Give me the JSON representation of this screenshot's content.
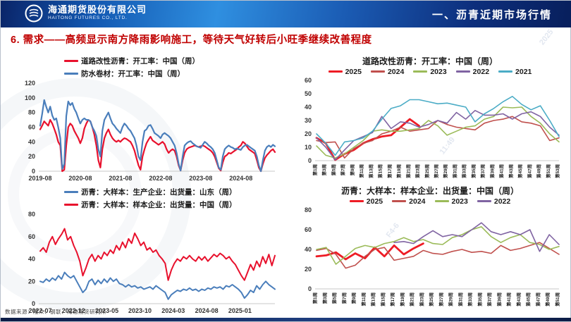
{
  "header": {
    "company_cn": "海通期货股份有限公司",
    "company_en": "HAITONG FUTURES CO., LTD.",
    "section_title": "一、沥青近期市场行情"
  },
  "slide_title": "6. 需求——高频显示南方降雨影响施工，等待天气好转后小旺季继续改善程度",
  "footer": {
    "source": "数据来源：隆众、钢联、海通期货研究所"
  },
  "watermarks": [
    "2025",
    "11:49",
    "F4-6"
  ],
  "colors": {
    "title_red": "#c00000",
    "series_red": "#e8112d",
    "series_steel_blue": "#4a7ebb",
    "series_2025": "#ee1c25",
    "series_2024": "#c0504d",
    "series_2023": "#9bbb59",
    "series_2022": "#8064a2",
    "series_2021": "#4bacc6",
    "header_blue": "#1257b0"
  },
  "chart_data": [
    {
      "type": "line",
      "title": "",
      "legend_layout": "column",
      "ylim": [
        0,
        120
      ],
      "yticks": [
        0,
        20,
        40,
        60,
        80,
        100,
        120
      ],
      "x_ticks": [
        "2019-08",
        "2020-08",
        "2021-08",
        "2022-08",
        "2023-08",
        "2024-08"
      ],
      "x_tick_pos": [
        0,
        0.171,
        0.342,
        0.513,
        0.684,
        0.855
      ],
      "x_labels_vertical": false,
      "margin_left": 30,
      "series": [
        {
          "name": "道路改性沥青：开工率：中国（周）",
          "color": "#e8112d",
          "width": 2.2,
          "values": [
            57,
            62,
            68,
            65,
            62,
            70,
            65,
            58,
            50,
            40,
            35,
            0,
            2,
            35,
            60,
            65,
            62,
            55,
            50,
            45,
            38,
            45,
            58,
            65,
            70,
            68,
            60,
            50,
            35,
            15,
            5,
            30,
            45,
            52,
            57,
            50,
            45,
            42,
            40,
            42,
            40,
            43,
            45,
            44,
            42,
            40,
            35,
            28,
            18,
            8,
            2,
            20,
            30,
            38,
            43,
            47,
            42,
            40,
            38,
            36,
            38,
            40,
            37,
            30,
            25,
            28,
            30,
            28,
            20,
            8,
            1,
            15,
            25,
            30,
            32,
            33,
            34,
            35,
            34,
            33,
            34,
            35,
            34,
            32,
            30,
            28,
            25,
            20,
            12,
            4,
            1,
            12,
            20,
            22,
            25,
            24,
            26,
            28,
            30,
            33,
            35,
            40,
            38,
            34,
            30,
            28,
            26,
            24,
            15,
            5,
            0,
            10,
            18,
            22,
            25,
            28,
            30,
            26
          ]
        },
        {
          "name": "防水卷材：开工率：中国（周）",
          "color": "#4a7ebb",
          "width": 2.2,
          "values": [
            62,
            78,
            97,
            88,
            80,
            88,
            76,
            70,
            72,
            60,
            45,
            3,
            10,
            75,
            95,
            90,
            93,
            85,
            80,
            72,
            65,
            70,
            72,
            70,
            70,
            68,
            60,
            55,
            48,
            30,
            20,
            55,
            70,
            75,
            80,
            72,
            65,
            62,
            58,
            55,
            52,
            60,
            65,
            62,
            58,
            55,
            50,
            45,
            35,
            20,
            15,
            40,
            55,
            57,
            62,
            63,
            58,
            52,
            50,
            48,
            45,
            50,
            52,
            50,
            48,
            45,
            40,
            35,
            25,
            10,
            1,
            20,
            35,
            38,
            40,
            41,
            38,
            36,
            34,
            33,
            32,
            36,
            40,
            38,
            35,
            33,
            30,
            25,
            15,
            5,
            2,
            20,
            30,
            33,
            35,
            33,
            32,
            30,
            31,
            30,
            29,
            33,
            35,
            36,
            34,
            32,
            30,
            28,
            20,
            8,
            0,
            15,
            28,
            33,
            35,
            33,
            36,
            34
          ]
        }
      ]
    },
    {
      "type": "line",
      "title": "道路改性沥青：开工率：中国（周）",
      "legend_layout": "row",
      "ylim": [
        0,
        60
      ],
      "yticks": [
        0,
        10,
        20,
        30,
        40,
        50,
        60
      ],
      "x_ticks": [
        "第1周",
        "第3周",
        "第5周",
        "第7周",
        "第9周",
        "第11周",
        "第13周",
        "第15周",
        "第17周",
        "第19周",
        "第21周",
        "第23周",
        "第25周",
        "第27周",
        "第29周",
        "第31周",
        "第33周",
        "第35周",
        "第37周",
        "第39周",
        "第41周",
        "第43周",
        "第45周",
        "第47周",
        "第49周",
        "第51周",
        "第53周"
      ],
      "x_labels_vertical": true,
      "margin_left": 26,
      "series": [
        {
          "name": "2025",
          "color": "#ee1c25",
          "width": 2.8,
          "values": [
            17,
            13,
            0.5,
            5,
            8,
            13,
            16,
            18,
            19,
            25,
            31,
            26
          ]
        },
        {
          "name": "2024",
          "color": "#c0504d",
          "width": 1.6,
          "values": [
            15,
            13.5,
            14,
            2,
            9,
            13,
            15,
            20,
            22,
            25,
            22,
            23,
            24,
            30,
            27,
            25,
            24,
            23,
            28,
            30,
            31,
            33,
            29,
            28,
            26,
            15,
            17
          ]
        },
        {
          "name": "2023",
          "color": "#9bbb59",
          "width": 1.6,
          "values": [
            11,
            4,
            2,
            5,
            10,
            15,
            22,
            23,
            22,
            22,
            23,
            24,
            30,
            26,
            19,
            22,
            25,
            26,
            31,
            33,
            40,
            39.5,
            40,
            33,
            28,
            20,
            14
          ]
        },
        {
          "name": "2022",
          "color": "#8064a2",
          "width": 1.6,
          "values": [
            17,
            10,
            0.5,
            8,
            15,
            18,
            21,
            33,
            24,
            29,
            28,
            25,
            27,
            30,
            28,
            36,
            31,
            37.5,
            34,
            34,
            35,
            31,
            35,
            36.5,
            33,
            25,
            19
          ]
        },
        {
          "name": "2021",
          "color": "#4bacc6",
          "width": 1.6,
          "values": [
            20,
            13,
            4,
            14,
            15,
            17,
            22,
            31,
            39,
            41,
            45.5,
            45.5,
            44,
            42.5,
            43,
            41.5,
            40,
            29,
            35,
            39,
            44,
            48,
            42,
            38,
            41,
            30,
            18
          ]
        }
      ]
    },
    {
      "type": "line",
      "title": "",
      "legend_layout": "column",
      "ylim": [
        0,
        80
      ],
      "yticks": [
        0,
        20,
        40,
        60,
        80
      ],
      "x_ticks": [
        "2022-07",
        "2022-12",
        "2023-05",
        "2023-10",
        "2024-03",
        "2024-08",
        "2025-01"
      ],
      "x_tick_pos": [
        0,
        0.142,
        0.284,
        0.425,
        0.567,
        0.709,
        0.851
      ],
      "x_labels_vertical": false,
      "margin_left": 30,
      "series": [
        {
          "name": "沥青：大样本：生产企业：出货量：山东（周）",
          "color": "#4a7ebb",
          "width": 2,
          "values": [
            20,
            19,
            22,
            20,
            23,
            21,
            25,
            22,
            28,
            25,
            23,
            25,
            20,
            15,
            10,
            13,
            20,
            22,
            17,
            21,
            18,
            22,
            19,
            23,
            20,
            22,
            18,
            17,
            15,
            17,
            15,
            16,
            14,
            15,
            13,
            14,
            15,
            13,
            16,
            14,
            12,
            10,
            4,
            8,
            10,
            12,
            11,
            13,
            12,
            14,
            12,
            13,
            11,
            13,
            12,
            14,
            13,
            15,
            14,
            15,
            13,
            16,
            15,
            17,
            15,
            13,
            10,
            5,
            8,
            12,
            10,
            16,
            13,
            17,
            20,
            17,
            15,
            13
          ]
        },
        {
          "name": "沥青：大样本：样本企业：出货量：中国（周）",
          "color": "#e8112d",
          "width": 2,
          "values": [
            47,
            50,
            46,
            55,
            60,
            53,
            58,
            62,
            67,
            57,
            60,
            52,
            46,
            38,
            25,
            32,
            40,
            44,
            38,
            43,
            40,
            46,
            43,
            48,
            45,
            52,
            48,
            55,
            50,
            58,
            54,
            63,
            58,
            52,
            55,
            48,
            50,
            46,
            48,
            43,
            40,
            36,
            21,
            30,
            36,
            40,
            38,
            42,
            40,
            43,
            40,
            38,
            42,
            39,
            42,
            38,
            41,
            44,
            42,
            45,
            43,
            40,
            42,
            38,
            35,
            30,
            25,
            21,
            28,
            35,
            30,
            38,
            33,
            42,
            36,
            44,
            34,
            43
          ]
        }
      ]
    },
    {
      "type": "line",
      "title": "沥青：大样本：样本企业：出货量：中国（周）",
      "legend_layout": "row",
      "ylim": [
        0,
        80
      ],
      "yticks": [
        0,
        20,
        40,
        60,
        80
      ],
      "x_ticks": [
        "第1周",
        "第3周",
        "第5周",
        "第7周",
        "第9周",
        "第11周",
        "第13周",
        "第15周",
        "第17周",
        "第19周",
        "第21周",
        "第23周",
        "第25周",
        "第27周",
        "第29周",
        "第31周",
        "第33周",
        "第35周",
        "第37周",
        "第39周",
        "第41周",
        "第43周",
        "第45周",
        "第47周",
        "第49周",
        "第51周"
      ],
      "x_labels_vertical": true,
      "margin_left": 26,
      "series": [
        {
          "name": "2025",
          "color": "#ee1c25",
          "width": 2.8,
          "values": [
            33,
            34,
            37,
            30,
            36,
            31,
            42,
            33,
            44,
            35,
            41,
            46
          ]
        },
        {
          "name": "2024",
          "color": "#c0504d",
          "width": 1.6,
          "values": [
            39,
            41,
            35,
            21,
            24,
            33,
            40,
            42,
            29,
            31,
            33,
            39,
            36,
            35,
            38,
            40,
            37,
            38,
            36,
            44,
            39,
            41,
            44,
            47,
            41,
            35
          ]
        },
        {
          "name": "2023",
          "color": "#9bbb59",
          "width": 1.6,
          "values": [
            40,
            42,
            25,
            33,
            41,
            44,
            42,
            46,
            48,
            52,
            48,
            50,
            46,
            45,
            52,
            55,
            60,
            63,
            53,
            47,
            52,
            55,
            47,
            45,
            40,
            43
          ]
        },
        {
          "name": "2022",
          "color": "#8064a2",
          "width": 1.6,
          "values": [
            null,
            null,
            null,
            null,
            null,
            null,
            null,
            null,
            47,
            48,
            46,
            53,
            59,
            53,
            55,
            53,
            60,
            67,
            58,
            55,
            58,
            55,
            60,
            38,
            55,
            45
          ]
        }
      ]
    }
  ]
}
